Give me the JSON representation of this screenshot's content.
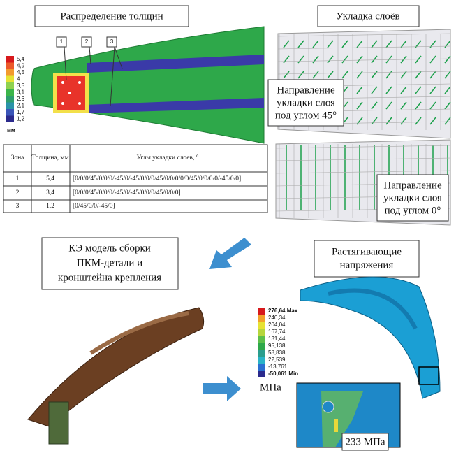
{
  "panel_thickness": {
    "title": "Распределение толщин",
    "legend": {
      "labels": [
        "5,4",
        "4,9",
        "4,5",
        "4",
        "3,5",
        "3,1",
        "2,6",
        "2,1",
        "1,7",
        "1,2"
      ],
      "unit": "мм"
    },
    "callouts": [
      "1",
      "2",
      "3"
    ]
  },
  "table": {
    "header": [
      "Зона",
      "Толщина, мм",
      "Углы укладки слоев, °"
    ],
    "rows": [
      [
        "1",
        "5,4",
        "[0/0/0/45/0/0/0/-45/0/-45/0/0/0/45/0/0/0/0/0/45/0/0/0/0/-45/0/0]"
      ],
      [
        "2",
        "3,4",
        "[0/0/0/45/0/0/0/-45/0/-45/0/0/0/45/0/0/0]"
      ],
      [
        "3",
        "1,2",
        "[0/45/0/0/-45/0]"
      ]
    ]
  },
  "panel_layup": {
    "title": "Укладка слоёв",
    "note_45": {
      "lines": [
        "Направление",
        "укладки слоя",
        "под углом 45°"
      ]
    },
    "note_0": {
      "lines": [
        "Направление",
        "укладки слоя",
        "под углом 0°"
      ]
    }
  },
  "panel_model": {
    "lines": [
      "КЭ модель сборки",
      "ПКМ-детали и",
      "кронштейна крепления"
    ]
  },
  "panel_stress": {
    "lines": [
      "Растягивающие",
      "напряжения"
    ],
    "legend": {
      "labels": [
        "276,64 Max",
        "240,34",
        "204,04",
        "167,74",
        "131,44",
        "95,138",
        "58,838",
        "22,539",
        "-13,761",
        "-50,061 Min"
      ],
      "unit": "МПа"
    },
    "peak_label": "233 МПа"
  }
}
